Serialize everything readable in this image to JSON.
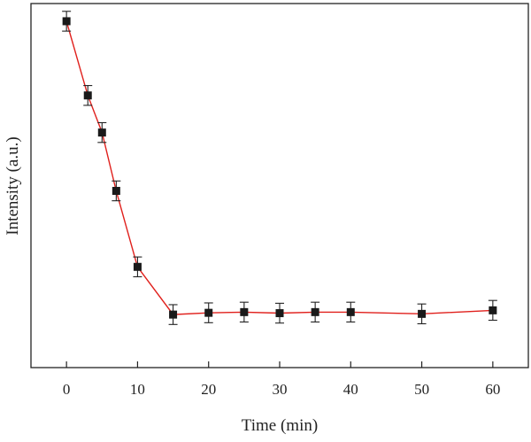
{
  "chart_data": {
    "type": "line",
    "xlabel": "Time (min)",
    "ylabel": "Intensity (a.u.)",
    "xlim": [
      -5,
      65
    ],
    "ylim": [
      0,
      1.03
    ],
    "xticks": [
      0,
      10,
      20,
      30,
      40,
      50,
      60
    ],
    "show_y_ticks": false,
    "grid": false,
    "line_color": "#e0201c",
    "marker_color": "#1a1a1a",
    "series": [
      {
        "x": [
          0,
          3,
          5,
          7,
          10,
          15,
          20,
          25,
          30,
          35,
          40,
          50,
          60
        ],
        "y": [
          0.98,
          0.77,
          0.665,
          0.5,
          0.285,
          0.15,
          0.155,
          0.157,
          0.154,
          0.157,
          0.157,
          0.152,
          0.162
        ],
        "err": [
          0.028,
          0.028,
          0.028,
          0.028,
          0.028,
          0.028,
          0.028,
          0.028,
          0.028,
          0.028,
          0.028,
          0.028,
          0.028
        ]
      }
    ]
  }
}
